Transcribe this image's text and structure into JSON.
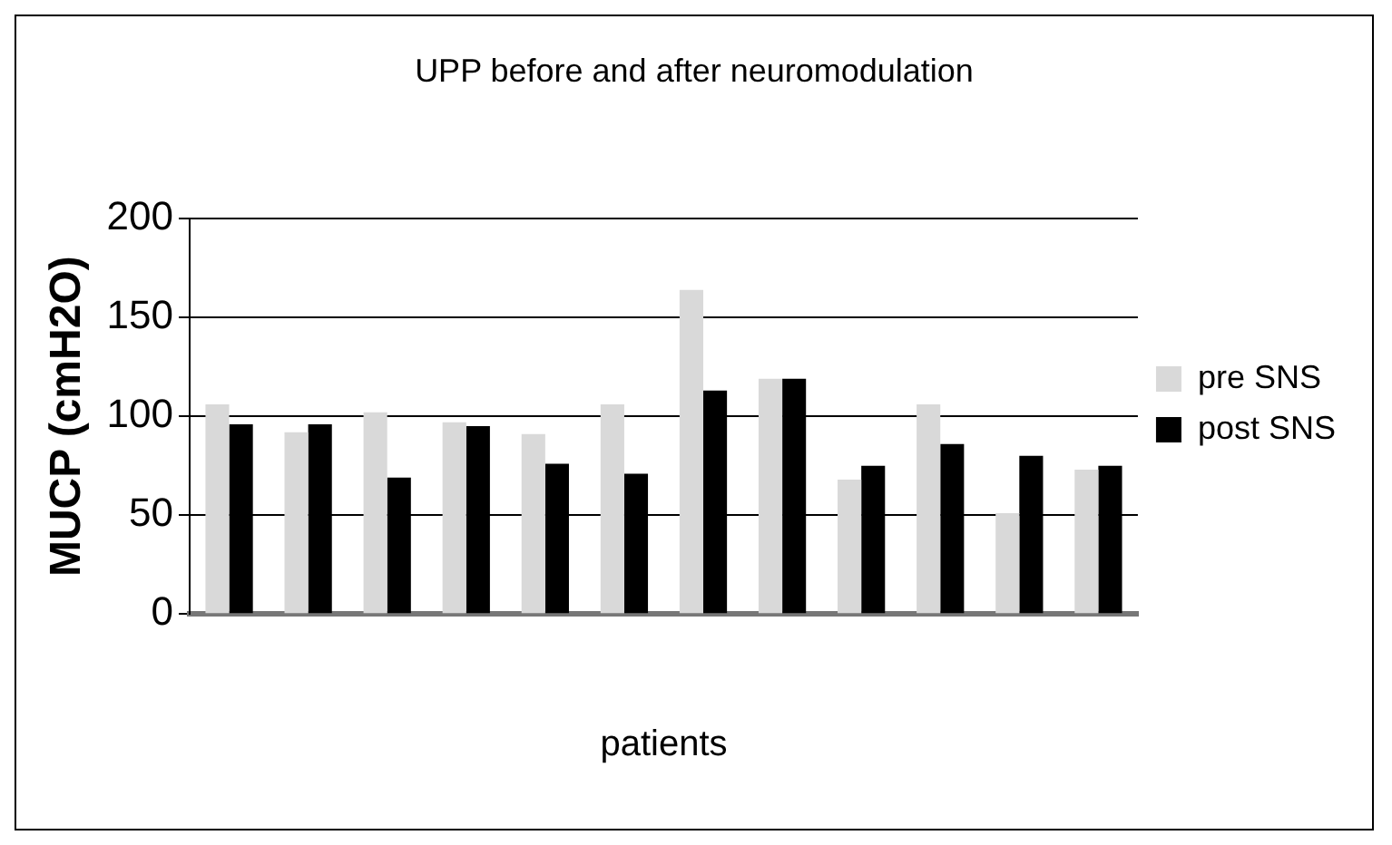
{
  "chart_data": {
    "type": "bar",
    "title": "UPP before and after neuromodulation",
    "xlabel": "patients",
    "ylabel": "MUCP (cmH2O)",
    "categories": [
      null,
      null,
      null,
      null,
      null,
      null,
      null,
      null,
      null,
      null,
      null,
      null
    ],
    "series": [
      {
        "name": "pre SNS",
        "color": "#d9d9d9",
        "values": [
          106,
          92,
          102,
          97,
          91,
          106,
          164,
          119,
          68,
          106,
          51,
          73
        ]
      },
      {
        "name": "post SNS",
        "color": "#000000",
        "values": [
          96,
          96,
          69,
          95,
          76,
          71,
          113,
          119,
          75,
          86,
          80,
          75
        ]
      }
    ],
    "ylim": [
      0,
      200
    ],
    "yticks": [
      0,
      50,
      100,
      150,
      200
    ],
    "grid": "y",
    "legend": "right"
  }
}
